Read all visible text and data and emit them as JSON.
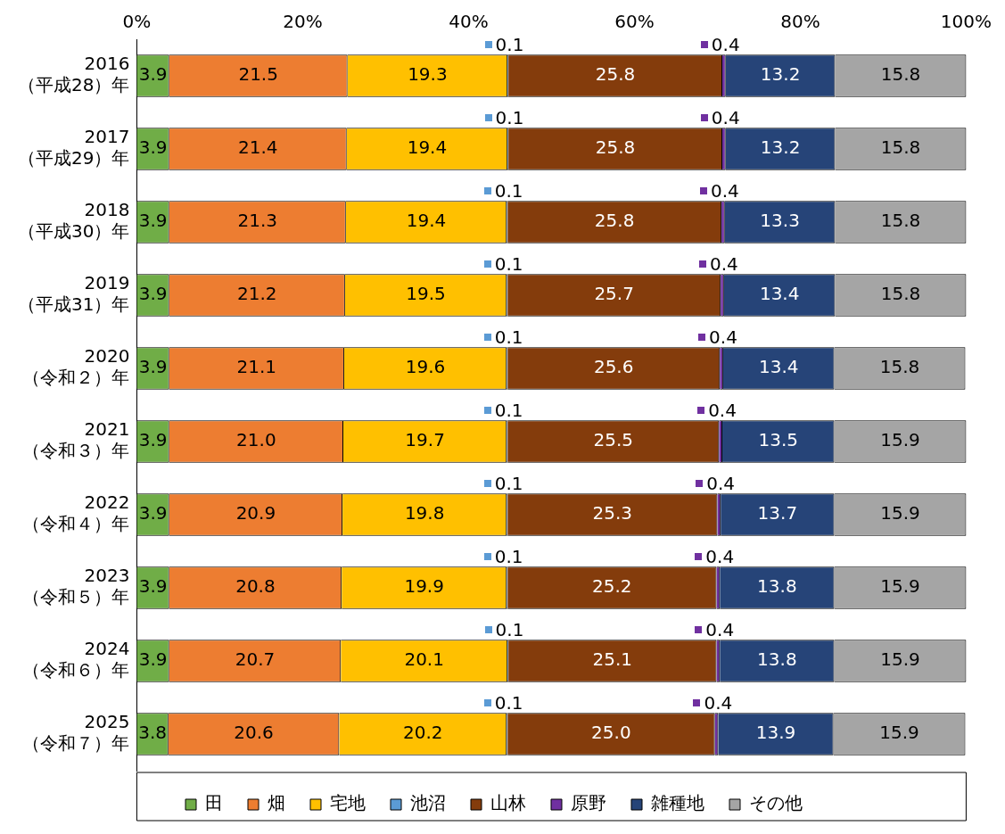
{
  "chart_data": {
    "type": "bar",
    "orientation": "horizontal",
    "stacked": true,
    "grid": false,
    "legend": "bottom",
    "categories": [
      "2016\n（平成28）年",
      "2017\n（平成29）年",
      "2018\n（平成30）年",
      "2019\n（平成31）年",
      "2020\n（令和２）年",
      "2021\n（令和３）年",
      "2022\n（令和４）年",
      "2023\n（令和５）年",
      "2024\n（令和６）年",
      "2025\n（令和７）年"
    ],
    "xlim": [
      0,
      100
    ],
    "xticks": [
      {
        "value": 0,
        "label": "0%"
      },
      {
        "value": 20,
        "label": "20%"
      },
      {
        "value": 40,
        "label": "40%"
      },
      {
        "value": 60,
        "label": "60%"
      },
      {
        "value": 80,
        "label": "80%"
      },
      {
        "value": 100,
        "label": "100%"
      }
    ],
    "series": [
      {
        "name": "田",
        "color": "#70ad47",
        "values": [
          3.9,
          3.9,
          3.9,
          3.9,
          3.9,
          3.9,
          3.9,
          3.9,
          3.9,
          3.8
        ],
        "value_labels": [
          "3.9",
          "3.9",
          "3.9",
          "3.9",
          "3.9",
          "3.9",
          "3.9",
          "3.9",
          "3.9",
          "3.8"
        ]
      },
      {
        "name": "畑",
        "color": "#ed7d31",
        "values": [
          21.5,
          21.4,
          21.3,
          21.2,
          21.1,
          21.0,
          20.9,
          20.8,
          20.7,
          20.6
        ],
        "value_labels": [
          "21.5",
          "21.4",
          "21.3",
          "21.2",
          "21.1",
          "21.0",
          "20.9",
          "20.8",
          "20.7",
          "20.6"
        ]
      },
      {
        "name": "宅地",
        "color": "#ffc000",
        "values": [
          19.3,
          19.4,
          19.4,
          19.5,
          19.6,
          19.7,
          19.8,
          19.9,
          20.1,
          20.2
        ],
        "value_labels": [
          "19.3",
          "19.4",
          "19.4",
          "19.5",
          "19.6",
          "19.7",
          "19.8",
          "19.9",
          "20.1",
          "20.2"
        ]
      },
      {
        "name": "池沼",
        "color": "#5b9bd5",
        "values": [
          0.1,
          0.1,
          0.1,
          0.1,
          0.1,
          0.1,
          0.1,
          0.1,
          0.1,
          0.1
        ],
        "value_labels": [
          "0.1",
          "0.1",
          "0.1",
          "0.1",
          "0.1",
          "0.1",
          "0.1",
          "0.1",
          "0.1",
          "0.1"
        ]
      },
      {
        "name": "山林",
        "color": "#843c0c",
        "values": [
          25.8,
          25.8,
          25.8,
          25.7,
          25.6,
          25.5,
          25.3,
          25.2,
          25.1,
          25.0
        ],
        "value_labels": [
          "25.8",
          "25.8",
          "25.8",
          "25.7",
          "25.6",
          "25.5",
          "25.3",
          "25.2",
          "25.1",
          "25.0"
        ]
      },
      {
        "name": "原野",
        "color": "#7030a0",
        "values": [
          0.4,
          0.4,
          0.4,
          0.4,
          0.4,
          0.4,
          0.4,
          0.4,
          0.4,
          0.4
        ],
        "value_labels": [
          "0.4",
          "0.4",
          "0.4",
          "0.4",
          "0.4",
          "0.4",
          "0.4",
          "0.4",
          "0.4",
          "0.4"
        ]
      },
      {
        "name": "雑種地",
        "color": "#264478",
        "values": [
          13.2,
          13.2,
          13.3,
          13.4,
          13.4,
          13.5,
          13.7,
          13.8,
          13.8,
          13.9
        ],
        "value_labels": [
          "13.2",
          "13.2",
          "13.3",
          "13.4",
          "13.4",
          "13.5",
          "13.7",
          "13.8",
          "13.8",
          "13.9"
        ]
      },
      {
        "name": "その他",
        "color": "#a5a5a5",
        "values": [
          15.8,
          15.8,
          15.8,
          15.8,
          15.8,
          15.9,
          15.9,
          15.9,
          15.9,
          15.9
        ],
        "value_labels": [
          "15.8",
          "15.8",
          "15.8",
          "15.8",
          "15.8",
          "15.9",
          "15.9",
          "15.9",
          "15.9",
          "15.9"
        ]
      }
    ]
  }
}
